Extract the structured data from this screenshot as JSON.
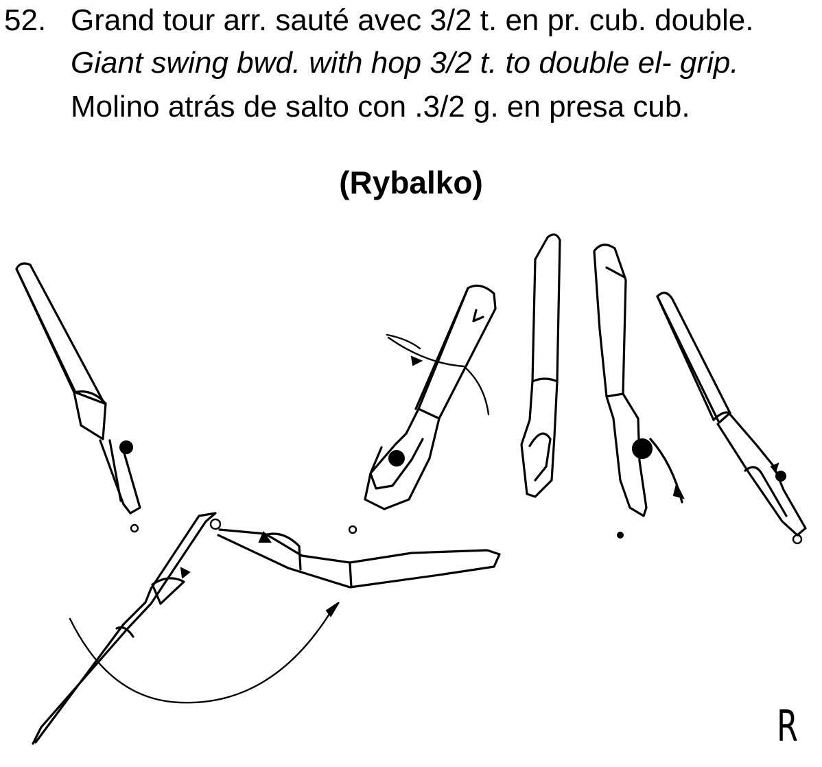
{
  "element": {
    "number": "52.",
    "title_fr": "Grand tour arr. sauté avec 3/2 t. en pr. cub. double.",
    "title_en": "Giant swing bwd. with hop 3/2 t. to double el- grip.",
    "title_es": "Molino atrás de salto con .3/2 g. en presa cub.",
    "eponym": "(Rybalko)",
    "corner_mark": "R"
  },
  "figure": {
    "subject": "gymnast-sequence",
    "stages": [
      "hang-left",
      "swing-up",
      "hop-turn",
      "vertical-front",
      "vertical-back",
      "hang-right"
    ],
    "motion_arrow": "arc-arrow",
    "ink_color": "#000000",
    "background_color": "#ffffff"
  }
}
